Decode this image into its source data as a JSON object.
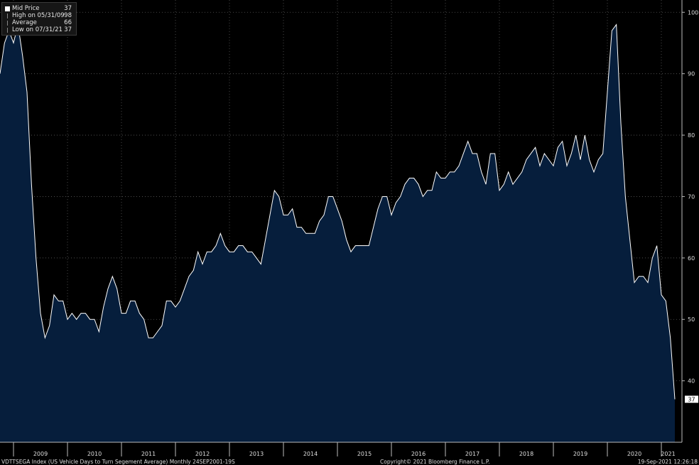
{
  "legend": {
    "items": [
      {
        "label": "Mid Price",
        "value": "37"
      },
      {
        "label": "High on 05/31/09",
        "value": "98"
      },
      {
        "label": "Average",
        "value": "66"
      },
      {
        "label": "Low on 07/31/21",
        "value": "37"
      }
    ]
  },
  "footer": {
    "left": "VDTTSEGA Index (US Vehicle Days to Turn Segement Average)  Monthly 24SEP2001-19S",
    "center": "Copyright© 2021 Bloomberg Finance L.P.",
    "right": "19-Sep-2021 12:26:18"
  },
  "colors": {
    "background": "#000000",
    "area_fill": "#061e3c",
    "line": "#ffffff",
    "grid": "#5a5a5a"
  },
  "chart_data": {
    "type": "area",
    "title": "",
    "xlabel": "",
    "ylabel": "",
    "ylim": [
      30,
      102
    ],
    "yticks": [
      40,
      50,
      60,
      70,
      80,
      90,
      100
    ],
    "xticks": [
      "2009",
      "2010",
      "2011",
      "2012",
      "2013",
      "2014",
      "2015",
      "2016",
      "2017",
      "2018",
      "2019",
      "2020",
      "2021"
    ],
    "x_start": "2008-10",
    "last_value_label": "37",
    "grid": true,
    "series": [
      {
        "name": "Mid Price",
        "values": [
          90,
          95,
          97,
          95,
          98,
          93,
          87,
          72,
          60,
          51,
          47,
          49,
          54,
          53,
          53,
          50,
          51,
          50,
          51,
          51,
          50,
          50,
          48,
          52,
          55,
          57,
          55,
          51,
          51,
          53,
          53,
          51,
          50,
          47,
          47,
          48,
          49,
          53,
          53,
          52,
          53,
          55,
          57,
          58,
          61,
          59,
          61,
          61,
          62,
          64,
          62,
          61,
          61,
          62,
          62,
          61,
          61,
          60,
          59,
          63,
          67,
          71,
          70,
          67,
          67,
          68,
          65,
          65,
          64,
          64,
          64,
          66,
          67,
          70,
          70,
          68,
          66,
          63,
          61,
          62,
          62,
          62,
          62,
          65,
          68,
          70,
          70,
          67,
          69,
          70,
          72,
          73,
          73,
          72,
          70,
          71,
          71,
          74,
          73,
          73,
          74,
          74,
          75,
          77,
          79,
          77,
          77,
          74,
          72,
          77,
          77,
          71,
          72,
          74,
          72,
          73,
          74,
          76,
          77,
          78,
          75,
          77,
          76,
          75,
          78,
          79,
          75,
          77,
          80,
          76,
          80,
          76,
          74,
          76,
          77,
          87,
          97,
          98,
          82,
          70,
          63,
          56,
          57,
          57,
          56,
          60,
          62,
          54,
          53,
          47,
          37
        ]
      }
    ]
  }
}
